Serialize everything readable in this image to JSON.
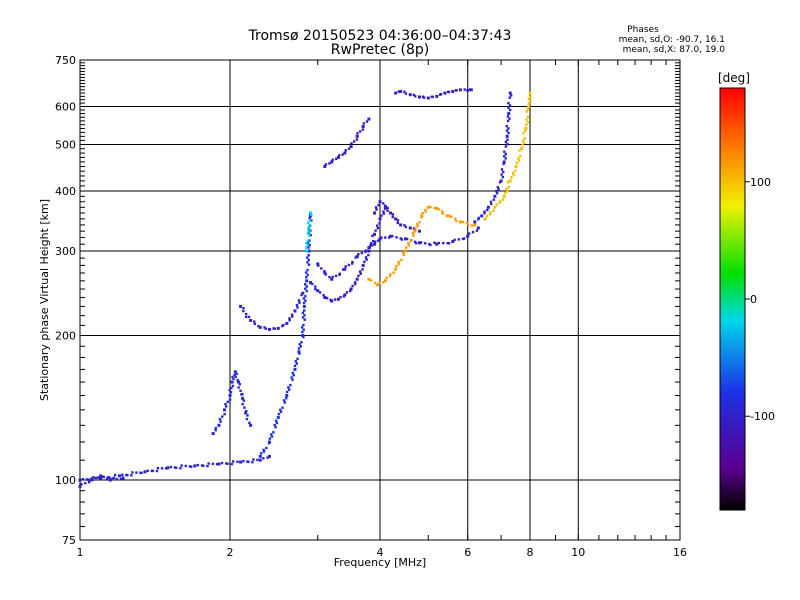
{
  "title": {
    "line1": "Tromsø 20150523 04:36:00–04:37:43",
    "line2": "RwPretec (8p)"
  },
  "phase_stats": {
    "heading": "Phases",
    "o_line": "mean, sd,O: -90.7, 16.1",
    "x_line": "mean, sd,X:  87.0, 19.0"
  },
  "colorbar": {
    "unit_label": "[deg]",
    "ticks": [
      "100",
      "0",
      "-100"
    ],
    "tick_values": [
      100,
      0,
      -100
    ],
    "range": [
      -180,
      180
    ]
  },
  "chart_data": {
    "type": "scatter",
    "title": "Tromsø 20150523 04:36:00–04:37:43",
    "subtitle": "RwPretec (8p)",
    "xlabel": "Frequency [MHz]",
    "ylabel": "Stationary phase Virtual Height [km]",
    "xscale": "log",
    "yscale": "log",
    "xlim": [
      1,
      16
    ],
    "ylim": [
      75,
      750
    ],
    "xticks": [
      1,
      2,
      4,
      6,
      8,
      10,
      16
    ],
    "xtick_labels": [
      "1",
      "2",
      "4",
      "6",
      "8",
      "10",
      "16"
    ],
    "yticks": [
      75,
      100,
      200,
      300,
      400,
      500,
      600,
      750
    ],
    "ytick_labels": [
      "75",
      "100",
      "200",
      "300",
      "400",
      "500",
      "600",
      "750"
    ],
    "grid": true,
    "colorscale": "rainbow (black → purple → blue → cyan → green → yellow → red)",
    "tracks": [
      {
        "color_deg": -95,
        "points": [
          [
            1.0,
            100
          ],
          [
            1.1,
            101
          ],
          [
            1.2,
            102
          ],
          [
            1.35,
            104
          ],
          [
            1.5,
            106
          ],
          [
            1.7,
            107
          ],
          [
            1.9,
            108
          ],
          [
            2.1,
            109
          ],
          [
            2.3,
            110
          ],
          [
            2.4,
            112
          ]
        ]
      },
      {
        "color_deg": -100,
        "points": [
          [
            1.0,
            97
          ],
          [
            1.05,
            100
          ],
          [
            1.1,
            102
          ],
          [
            1.15,
            100
          ],
          [
            1.22,
            101
          ]
        ]
      },
      {
        "color_deg": -90,
        "points": [
          [
            1.85,
            125
          ],
          [
            1.9,
            130
          ],
          [
            1.95,
            140
          ],
          [
            2.0,
            150
          ],
          [
            2.02,
            160
          ],
          [
            2.05,
            168
          ],
          [
            2.08,
            160
          ],
          [
            2.12,
            148
          ],
          [
            2.15,
            138
          ],
          [
            2.2,
            130
          ]
        ]
      },
      {
        "color_deg": -80,
        "points": [
          [
            2.3,
            112
          ],
          [
            2.4,
            120
          ],
          [
            2.5,
            135
          ],
          [
            2.6,
            150
          ],
          [
            2.7,
            170
          ],
          [
            2.75,
            185
          ],
          [
            2.8,
            200
          ],
          [
            2.82,
            230
          ],
          [
            2.85,
            260
          ],
          [
            2.88,
            300
          ],
          [
            2.9,
            355
          ]
        ]
      },
      {
        "color_deg": -95,
        "points": [
          [
            2.1,
            230
          ],
          [
            2.2,
            215
          ],
          [
            2.3,
            208
          ],
          [
            2.4,
            206
          ],
          [
            2.5,
            207
          ],
          [
            2.6,
            212
          ],
          [
            2.7,
            225
          ],
          [
            2.8,
            245
          ]
        ]
      },
      {
        "color_deg": -100,
        "points": [
          [
            2.9,
            258
          ],
          [
            3.0,
            248
          ],
          [
            3.1,
            240
          ],
          [
            3.2,
            236
          ],
          [
            3.3,
            238
          ],
          [
            3.4,
            243
          ],
          [
            3.5,
            250
          ],
          [
            3.6,
            262
          ],
          [
            3.7,
            280
          ],
          [
            3.8,
            300
          ],
          [
            3.9,
            325
          ],
          [
            4.0,
            350
          ],
          [
            4.1,
            368
          ]
        ]
      },
      {
        "color_deg": -100,
        "points": [
          [
            3.0,
            282
          ],
          [
            3.1,
            270
          ],
          [
            3.2,
            262
          ],
          [
            3.4,
            275
          ],
          [
            3.6,
            292
          ],
          [
            3.8,
            305
          ],
          [
            3.9,
            310
          ],
          [
            4.0,
            318
          ],
          [
            4.2,
            322
          ],
          [
            4.5,
            318
          ],
          [
            4.8,
            312
          ],
          [
            5.2,
            310
          ],
          [
            5.6,
            314
          ],
          [
            6.0,
            322
          ],
          [
            6.3,
            335
          ]
        ]
      },
      {
        "color_deg": -100,
        "points": [
          [
            3.9,
            360
          ],
          [
            4.0,
            380
          ],
          [
            4.1,
            372
          ],
          [
            4.2,
            360
          ],
          [
            4.3,
            350
          ],
          [
            4.4,
            340
          ],
          [
            4.6,
            335
          ],
          [
            4.8,
            330
          ]
        ]
      },
      {
        "color_deg": 115,
        "points": [
          [
            3.8,
            262
          ],
          [
            3.95,
            255
          ],
          [
            4.1,
            260
          ],
          [
            4.3,
            275
          ],
          [
            4.5,
            300
          ],
          [
            4.7,
            330
          ],
          [
            4.85,
            355
          ],
          [
            5.0,
            370
          ],
          [
            5.2,
            368
          ],
          [
            5.5,
            355
          ],
          [
            5.8,
            345
          ],
          [
            6.2,
            340
          ]
        ]
      },
      {
        "color_deg": -95,
        "points": [
          [
            6.2,
            345
          ],
          [
            6.4,
            355
          ],
          [
            6.6,
            370
          ],
          [
            6.8,
            390
          ],
          [
            7.0,
            420
          ],
          [
            7.1,
            460
          ],
          [
            7.2,
            520
          ],
          [
            7.25,
            580
          ],
          [
            7.3,
            640
          ]
        ]
      },
      {
        "color_deg": 100,
        "points": [
          [
            6.5,
            350
          ],
          [
            6.8,
            370
          ],
          [
            7.1,
            390
          ],
          [
            7.3,
            420
          ],
          [
            7.5,
            450
          ],
          [
            7.7,
            490
          ],
          [
            7.85,
            540
          ],
          [
            7.95,
            600
          ],
          [
            8.0,
            640
          ]
        ]
      },
      {
        "color_deg": -100,
        "points": [
          [
            3.1,
            450
          ],
          [
            3.2,
            460
          ],
          [
            3.3,
            470
          ],
          [
            3.4,
            480
          ],
          [
            3.5,
            495
          ],
          [
            3.6,
            520
          ],
          [
            3.7,
            545
          ],
          [
            3.8,
            565
          ]
        ]
      },
      {
        "color_deg": -105,
        "points": [
          [
            4.3,
            640
          ],
          [
            4.4,
            645
          ],
          [
            4.6,
            635
          ],
          [
            4.8,
            628
          ],
          [
            5.0,
            625
          ],
          [
            5.2,
            630
          ],
          [
            5.4,
            640
          ],
          [
            5.6,
            645
          ],
          [
            5.8,
            650
          ],
          [
            6.0,
            648
          ],
          [
            6.1,
            650
          ]
        ]
      },
      {
        "color_deg": -20,
        "points": [
          [
            2.85,
            300
          ],
          [
            2.88,
            330
          ],
          [
            2.9,
            360
          ]
        ]
      }
    ]
  }
}
